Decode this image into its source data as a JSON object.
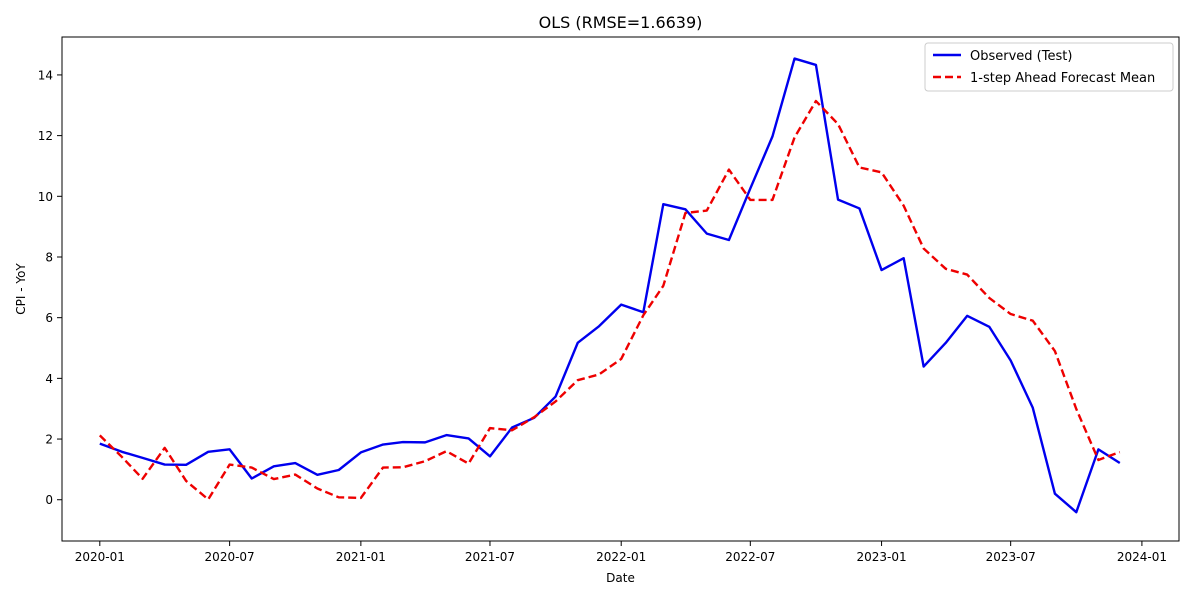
{
  "chart_data": {
    "type": "line",
    "title": "OLS (RMSE=1.6639)",
    "xlabel": "Date",
    "ylabel": "CPI - YoY",
    "x_tick_labels": [
      "2020-01",
      "2020-07",
      "2021-01",
      "2021-07",
      "2022-01",
      "2022-07",
      "2023-01",
      "2023-07",
      "2024-01"
    ],
    "y_ticks": [
      0,
      2,
      4,
      6,
      8,
      10,
      12,
      14
    ],
    "xlim": [
      "2019-11-09",
      "2024-02-22"
    ],
    "ylim": [
      -1.36,
      15.25
    ],
    "grid": false,
    "legend_position": "top-right",
    "x": [
      "2020-01",
      "2020-02",
      "2020-03",
      "2020-04",
      "2020-05",
      "2020-06",
      "2020-07",
      "2020-08",
      "2020-09",
      "2020-10",
      "2020-11",
      "2020-12",
      "2021-01",
      "2021-02",
      "2021-03",
      "2021-04",
      "2021-05",
      "2021-06",
      "2021-07",
      "2021-08",
      "2021-09",
      "2021-10",
      "2021-11",
      "2021-12",
      "2022-01",
      "2022-02",
      "2022-03",
      "2022-04",
      "2022-05",
      "2022-06",
      "2022-07",
      "2022-08",
      "2022-09",
      "2022-10",
      "2022-11",
      "2022-12",
      "2023-01",
      "2023-02",
      "2023-03",
      "2023-04",
      "2023-05",
      "2023-06",
      "2023-07",
      "2023-08",
      "2023-09",
      "2023-10",
      "2023-11",
      "2023-12"
    ],
    "series": [
      {
        "name": "Observed (Test)",
        "color": "#0000ee",
        "dash": "solid",
        "values": [
          1.85,
          1.58,
          1.38,
          1.16,
          1.15,
          1.58,
          1.66,
          0.7,
          1.1,
          1.21,
          0.82,
          0.98,
          1.56,
          1.82,
          1.9,
          1.89,
          2.13,
          2.02,
          1.43,
          2.38,
          2.7,
          3.4,
          5.17,
          5.72,
          6.43,
          6.18,
          9.74,
          9.57,
          8.77,
          8.56,
          10.26,
          11.97,
          14.54,
          14.33,
          9.89,
          9.6,
          7.57,
          7.96,
          4.39,
          5.17,
          6.06,
          5.7,
          4.59,
          3.03,
          0.2,
          -0.41,
          1.66,
          1.21
        ]
      },
      {
        "name": "1-step Ahead Forecast Mean",
        "color": "#ee0000",
        "dash": "dashed",
        "values": [
          2.12,
          1.41,
          0.69,
          1.71,
          0.62,
          0.01,
          1.16,
          1.06,
          0.68,
          0.83,
          0.37,
          0.08,
          0.06,
          1.06,
          1.07,
          1.27,
          1.6,
          1.19,
          2.36,
          2.29,
          2.72,
          3.24,
          3.94,
          4.13,
          4.64,
          6.08,
          7.05,
          9.45,
          9.53,
          10.88,
          9.88,
          9.88,
          11.94,
          13.14,
          12.38,
          10.95,
          10.79,
          9.69,
          8.28,
          7.61,
          7.42,
          6.65,
          6.12,
          5.9,
          4.9,
          2.99,
          1.31,
          1.57
        ]
      }
    ]
  }
}
